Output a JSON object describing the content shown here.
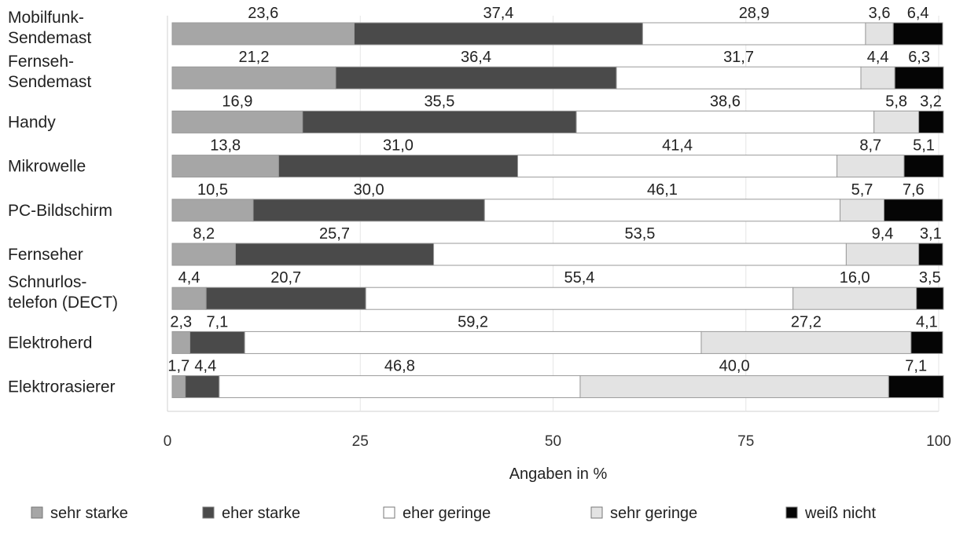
{
  "chart_data": {
    "type": "bar",
    "orientation": "horizontal",
    "stacked": true,
    "xlabel": "Angaben in %",
    "xlim": [
      0,
      100
    ],
    "x_ticks": [
      "0",
      "25",
      "50",
      "75",
      "100"
    ],
    "grid": true,
    "legend_position": "bottom",
    "categories": [
      "Mobilfunk-\nSendemast",
      "Fernseh-\nSendemast",
      "Handy",
      "Mikrowelle",
      "PC-Bildschirm",
      "Fernseher",
      "Schnurlos-\ntelefon (DECT)",
      "Elektroherd",
      "Elektrorasierer"
    ],
    "series": [
      {
        "name": "sehr starke",
        "color": "#a6a6a6",
        "values": [
          23.6,
          21.2,
          16.9,
          13.8,
          10.5,
          8.2,
          4.4,
          2.3,
          1.7
        ],
        "labels": [
          "23,6",
          "21,2",
          "16,9",
          "13,8",
          "10,5",
          "8,2",
          "4,4",
          "2,3",
          "1,7"
        ]
      },
      {
        "name": "eher starke",
        "color": "#4a4a4a",
        "values": [
          37.4,
          36.4,
          35.5,
          31.0,
          30.0,
          25.7,
          20.7,
          7.1,
          4.4
        ],
        "labels": [
          "37,4",
          "36,4",
          "35,5",
          "31,0",
          "30,0",
          "25,7",
          "20,7",
          "7,1",
          "4,4"
        ]
      },
      {
        "name": "eher geringe",
        "color": "#ffffff",
        "values": [
          28.9,
          31.7,
          38.6,
          41.4,
          46.1,
          53.5,
          55.4,
          59.2,
          46.8
        ],
        "labels": [
          "28,9",
          "31,7",
          "38,6",
          "41,4",
          "46,1",
          "53,5",
          "55,4",
          "59,2",
          "46,8"
        ]
      },
      {
        "name": "sehr geringe",
        "color": "#e3e3e3",
        "values": [
          3.6,
          4.4,
          5.8,
          8.7,
          5.7,
          9.4,
          16.0,
          27.2,
          40.0
        ],
        "labels": [
          "3,6",
          "4,4",
          "5,8",
          "8,7",
          "5,7",
          "9,4",
          "16,0",
          "27,2",
          "40,0"
        ]
      },
      {
        "name": "weiß nicht",
        "color": "#050505",
        "values": [
          6.4,
          6.3,
          3.2,
          5.1,
          7.6,
          3.1,
          3.5,
          4.1,
          7.1
        ],
        "labels": [
          "6,4",
          "6,3",
          "3,2",
          "5,1",
          "7,6",
          "3,1",
          "3,5",
          "4,1",
          "7,1"
        ]
      }
    ]
  }
}
